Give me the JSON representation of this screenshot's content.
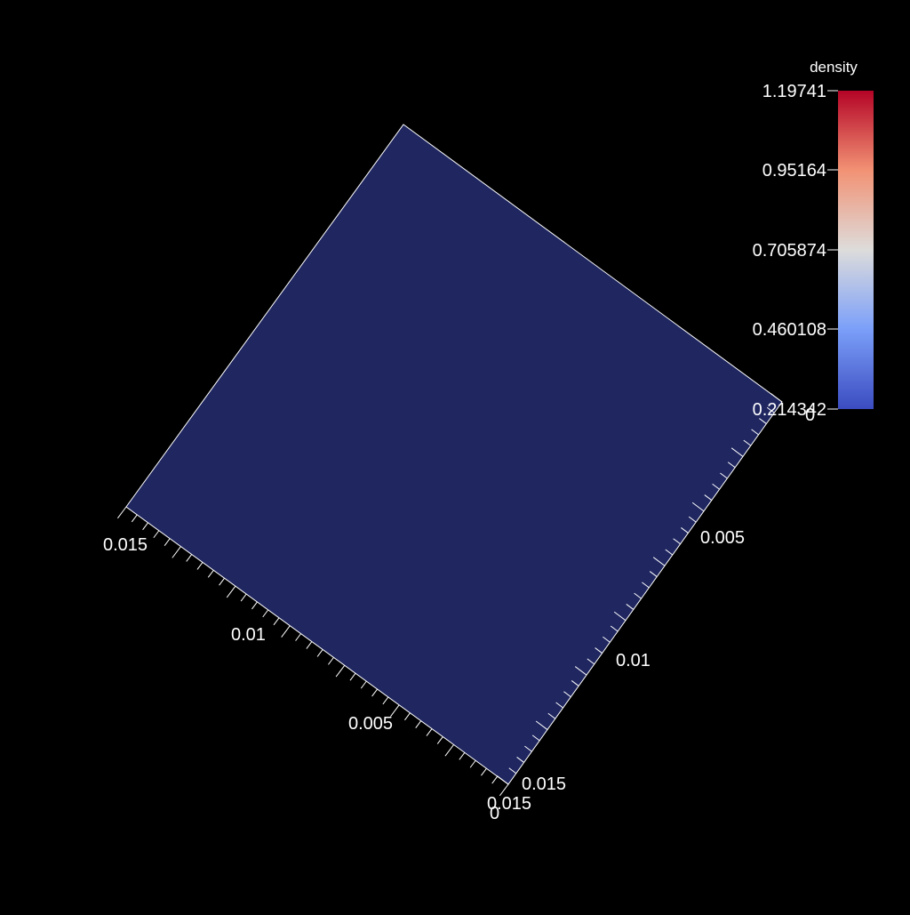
{
  "scalar_bar": {
    "title": "density",
    "labels": [
      "1.19741",
      "0.95164",
      "0.705874",
      "0.460108",
      "0.214342"
    ],
    "colors": {
      "top": "#b40426",
      "upper": "#f29274",
      "middle": "#dddcdb",
      "lower": "#7b9ff9",
      "bottom": "#3b4cc0"
    }
  },
  "surface": {
    "color": "#1f2660",
    "edge_color": "#ffffff"
  },
  "axes": {
    "front_left_edge_labels": [
      "0.015",
      "0.01",
      "0.005",
      "0"
    ],
    "front_right_edge_labels": [
      "0",
      "0.005",
      "0.01",
      "0.015"
    ],
    "corner_label": "0.015"
  }
}
